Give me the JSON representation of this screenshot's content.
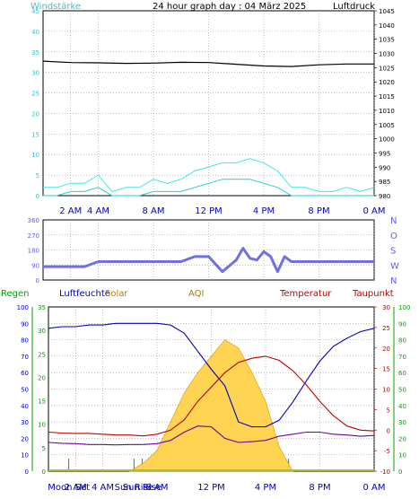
{
  "header": {
    "left_label": "Windstärke",
    "title": "24 hour graph day : 04 März 2025",
    "right_label": "Luftdruck"
  },
  "colors": {
    "wind": "#20d0d0",
    "gust": "#40e8e8",
    "pressure": "#000000",
    "winddir": "#7070e0",
    "humidity": "#0000c0",
    "temperature": "#c00000",
    "dewpoint": "#7000a0",
    "rain": "#00a000",
    "solar": "#e0a000",
    "solar_fill": "#ffd040",
    "grid": "#808080",
    "moon": "#0000c0",
    "sun": "#0000c0"
  },
  "chart_data": [
    {
      "type": "line",
      "name": "wind_pressure",
      "x_ticks": [
        "2 AM",
        "4 AM",
        "8 AM",
        "12 PM",
        "4 PM",
        "8 PM",
        "0 AM"
      ],
      "x_tick_hours": [
        2,
        4,
        8,
        12,
        16,
        20,
        24
      ],
      "y_left": {
        "label": "Windstärke",
        "min": 0,
        "max": 45,
        "ticks": [
          0,
          5,
          10,
          15,
          20,
          25,
          30,
          35,
          40,
          45
        ]
      },
      "y_right": {
        "label": "Luftdruck",
        "min": 980,
        "max": 1045,
        "ticks": [
          980,
          985,
          990,
          995,
          1000,
          1005,
          1010,
          1015,
          1020,
          1025,
          1030,
          1035,
          1040,
          1045
        ]
      },
      "series": [
        {
          "key": "pressure",
          "axis": "right",
          "x": [
            0,
            2,
            4,
            6,
            8,
            10,
            12,
            14,
            16,
            18,
            20,
            22,
            24
          ],
          "values": [
            1027.3,
            1026.8,
            1026.7,
            1026.5,
            1026.6,
            1026.9,
            1026.8,
            1026.2,
            1025.6,
            1025.4,
            1026.0,
            1026.3,
            1026.3
          ]
        },
        {
          "key": "wind",
          "axis": "left",
          "x": [
            0,
            1,
            2,
            3,
            4,
            5,
            6,
            7,
            8,
            9,
            10,
            11,
            12,
            13,
            14,
            15,
            16,
            17,
            18,
            19,
            20,
            21,
            22,
            23,
            24
          ],
          "values": [
            0,
            0,
            1,
            1,
            2,
            0,
            0,
            0,
            1,
            1,
            1,
            2,
            3,
            4,
            4,
            4,
            3,
            2,
            0,
            0,
            0,
            0,
            0,
            0,
            0
          ]
        },
        {
          "key": "gust",
          "axis": "left",
          "x": [
            0,
            1,
            2,
            3,
            4,
            5,
            6,
            7,
            8,
            9,
            10,
            11,
            12,
            13,
            14,
            15,
            16,
            17,
            18,
            19,
            20,
            21,
            22,
            23,
            24
          ],
          "values": [
            2,
            2,
            3,
            3,
            5,
            1,
            2,
            2,
            4,
            3,
            4,
            6,
            7,
            8,
            8,
            9,
            8,
            6,
            2,
            2,
            1,
            1,
            2,
            1,
            2
          ]
        }
      ]
    },
    {
      "type": "line",
      "name": "wind_direction",
      "y_left_ticks": [
        0,
        90,
        180,
        270,
        360
      ],
      "y_right_ticks": [
        "N",
        "W",
        "S",
        "O",
        "N"
      ],
      "series": [
        {
          "key": "winddir",
          "x": [
            0,
            2,
            3,
            4,
            6,
            8,
            10,
            11,
            12,
            13,
            14,
            14.5,
            15,
            15.5,
            16,
            16.5,
            17,
            17.5,
            18,
            20,
            22,
            24
          ],
          "values": [
            80,
            80,
            80,
            110,
            110,
            110,
            110,
            140,
            140,
            50,
            120,
            190,
            130,
            120,
            170,
            140,
            50,
            140,
            110,
            110,
            110,
            110
          ]
        }
      ]
    },
    {
      "type": "line",
      "name": "weather",
      "legend": [
        "Regen",
        "Luftfeuchte",
        "Solar",
        "AQI",
        "Temperatur",
        "Taupunkt"
      ],
      "x_ticks": [
        "2 AM",
        "4 AM",
        "8 AM",
        "12 PM",
        "4 PM",
        "8 PM",
        "0 AM"
      ],
      "x_tick_hours": [
        2,
        4,
        8,
        12,
        16,
        20,
        24
      ],
      "y_left_ticks": [
        0,
        10,
        20,
        30,
        40,
        50,
        60,
        70,
        80,
        90,
        100
      ],
      "y_rain_ticks": [
        0,
        5,
        10,
        15,
        20,
        25,
        30,
        35
      ],
      "y_temp_ticks": [
        -10,
        -5,
        0,
        5,
        10,
        15,
        20,
        25,
        30
      ],
      "y_dew_ticks": [
        0,
        10,
        20,
        30,
        40,
        50,
        60,
        70,
        80,
        90,
        100
      ],
      "events": [
        {
          "label": "Moon Set",
          "hour": 1.5
        },
        {
          "label": "Sun Rise",
          "hour": 6.3
        },
        {
          "label": "Sun Rise",
          "hour": 6.9
        },
        {
          "label": "",
          "hour": 17.7
        }
      ],
      "series": [
        {
          "key": "humidity",
          "x": [
            0,
            1,
            2,
            3,
            4,
            5,
            6,
            7,
            8,
            9,
            10,
            11,
            12,
            13,
            14,
            15,
            16,
            17,
            18,
            19,
            20,
            21,
            22,
            23,
            24
          ],
          "values": [
            87,
            88,
            88,
            89,
            89,
            90,
            90,
            90,
            90,
            89,
            84,
            73,
            62,
            52,
            30,
            27,
            27,
            31,
            42,
            55,
            67,
            76,
            81,
            85,
            87
          ]
        },
        {
          "key": "temperature",
          "x": [
            0,
            1,
            2,
            3,
            4,
            5,
            6,
            7,
            8,
            9,
            10,
            11,
            12,
            13,
            14,
            15,
            16,
            17,
            18,
            19,
            20,
            21,
            22,
            23,
            24
          ],
          "values": [
            -0.5,
            -0.7,
            -0.8,
            -0.8,
            -1.0,
            -1.2,
            -1.2,
            -1.4,
            -1.0,
            0.0,
            2.5,
            7.0,
            10.5,
            14.0,
            16.5,
            17.5,
            18.0,
            17.0,
            14.5,
            11.0,
            7.0,
            3.5,
            1.0,
            0.0,
            -0.2
          ]
        },
        {
          "key": "dewpoint",
          "x": [
            0,
            1,
            2,
            3,
            4,
            5,
            6,
            7,
            8,
            9,
            10,
            11,
            12,
            13,
            14,
            15,
            16,
            17,
            18,
            19,
            20,
            21,
            22,
            23,
            24
          ],
          "values": [
            -3.0,
            -3.2,
            -3.3,
            -3.5,
            -3.5,
            -3.6,
            -3.5,
            -3.5,
            -3.3,
            -2.5,
            -0.5,
            1.0,
            0.8,
            -2.0,
            -3.0,
            -2.8,
            -2.5,
            -1.5,
            -1.0,
            -0.5,
            -0.5,
            -1.0,
            -1.2,
            -1.5,
            -1.3
          ]
        },
        {
          "key": "solar",
          "x": [
            6,
            7,
            8,
            9,
            10,
            11,
            12,
            13,
            14,
            15,
            16,
            17,
            18
          ],
          "values": [
            0,
            2,
            5,
            12,
            19,
            24,
            28,
            32,
            30,
            24,
            17,
            6,
            0
          ]
        }
      ]
    }
  ]
}
